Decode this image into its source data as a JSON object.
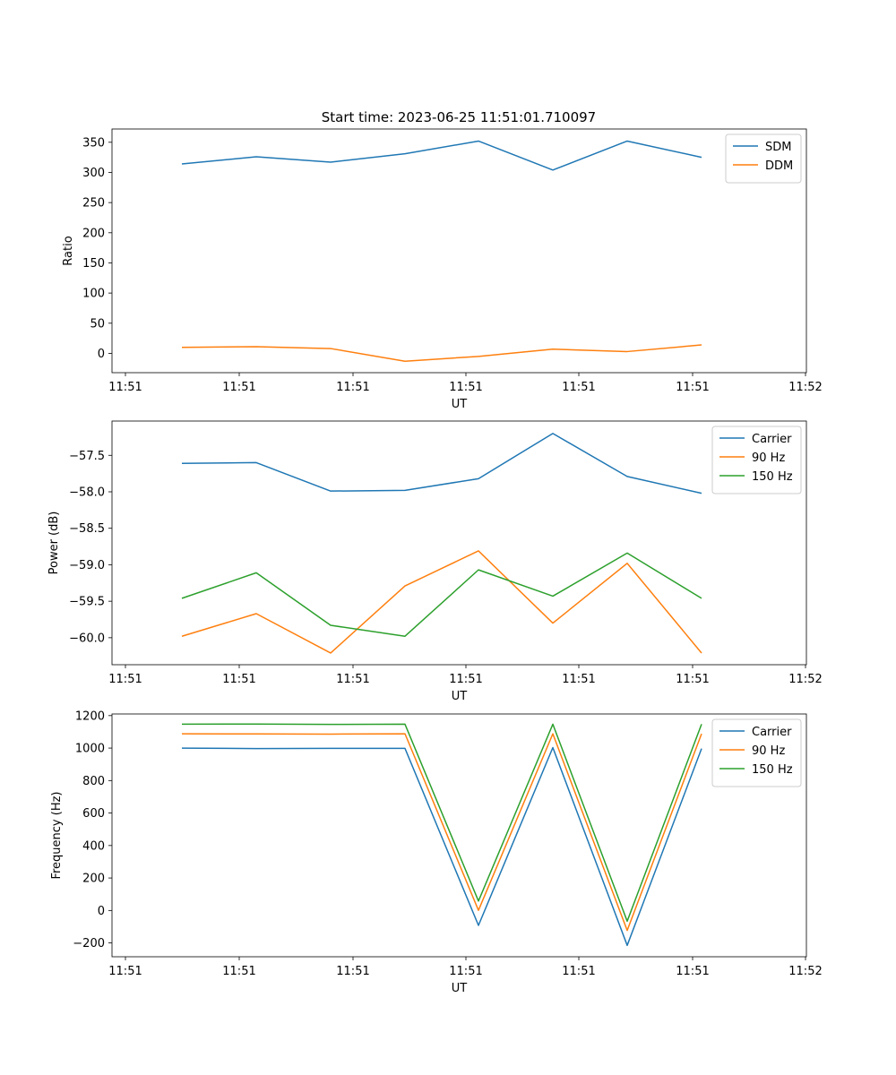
{
  "chart_data": [
    {
      "type": "line",
      "title": "Start time: 2023-06-25 11:51:01.710097",
      "xlabel": "UT",
      "ylabel": "Ratio",
      "x_tick_labels": [
        "11:51",
        "11:51",
        "11:51",
        "11:51",
        "11:51",
        "11:51",
        "11:52"
      ],
      "y_ticks": [
        0,
        50,
        100,
        150,
        200,
        250,
        300,
        350
      ],
      "ylim": [
        -32,
        372
      ],
      "legend_position": "top-right",
      "grid": false,
      "series": [
        {
          "name": "SDM",
          "color": "#1f77b4",
          "values": [
            314,
            326,
            317,
            331,
            352,
            304,
            352,
            325
          ]
        },
        {
          "name": "DDM",
          "color": "#ff7f0e",
          "values": [
            10,
            11,
            8,
            -13,
            -5,
            7,
            3,
            14
          ]
        }
      ]
    },
    {
      "type": "line",
      "title": "",
      "xlabel": "UT",
      "ylabel": "Power (dB)",
      "x_tick_labels": [
        "11:51",
        "11:51",
        "11:51",
        "11:51",
        "11:51",
        "11:51",
        "11:52"
      ],
      "y_ticks": [
        -60.0,
        -59.5,
        -59.0,
        -58.5,
        -58.0,
        -57.5
      ],
      "y_tick_labels": [
        "−60.0",
        "−59.5",
        "−59.0",
        "−58.5",
        "−58.0",
        "−57.5"
      ],
      "ylim": [
        -60.37,
        -57.03
      ],
      "legend_position": "top-right",
      "grid": false,
      "series": [
        {
          "name": "Carrier",
          "color": "#1f77b4",
          "values": [
            -57.61,
            -57.6,
            -57.99,
            -57.98,
            -57.82,
            -57.2,
            -57.79,
            -58.02
          ]
        },
        {
          "name": "90 Hz",
          "color": "#ff7f0e",
          "values": [
            -59.98,
            -59.67,
            -60.21,
            -59.29,
            -58.81,
            -59.8,
            -58.98,
            -60.21
          ]
        },
        {
          "name": "150 Hz",
          "color": "#2ca02c",
          "values": [
            -59.46,
            -59.11,
            -59.83,
            -59.98,
            -59.07,
            -59.43,
            -58.84,
            -59.46
          ]
        }
      ]
    },
    {
      "type": "line",
      "title": "",
      "xlabel": "UT",
      "ylabel": "Frequency (Hz)",
      "x_tick_labels": [
        "11:51",
        "11:51",
        "11:51",
        "11:51",
        "11:51",
        "11:51",
        "11:52"
      ],
      "y_ticks": [
        -200,
        0,
        200,
        400,
        600,
        800,
        1000,
        1200
      ],
      "y_tick_labels": [
        "−200",
        "0",
        "200",
        "400",
        "600",
        "800",
        "1000",
        "1200"
      ],
      "ylim": [
        -285,
        1210
      ],
      "legend_position": "top-right",
      "grid": false,
      "series": [
        {
          "name": "Carrier",
          "color": "#1f77b4",
          "values": [
            1000,
            997,
            998,
            998,
            -92,
            1003,
            -215,
            997
          ]
        },
        {
          "name": "90 Hz",
          "color": "#ff7f0e",
          "values": [
            1088,
            1087,
            1086,
            1088,
            1,
            1088,
            -123,
            1088
          ]
        },
        {
          "name": "150 Hz",
          "color": "#2ca02c",
          "values": [
            1147,
            1148,
            1146,
            1147,
            58,
            1147,
            -66,
            1147
          ]
        }
      ]
    }
  ]
}
